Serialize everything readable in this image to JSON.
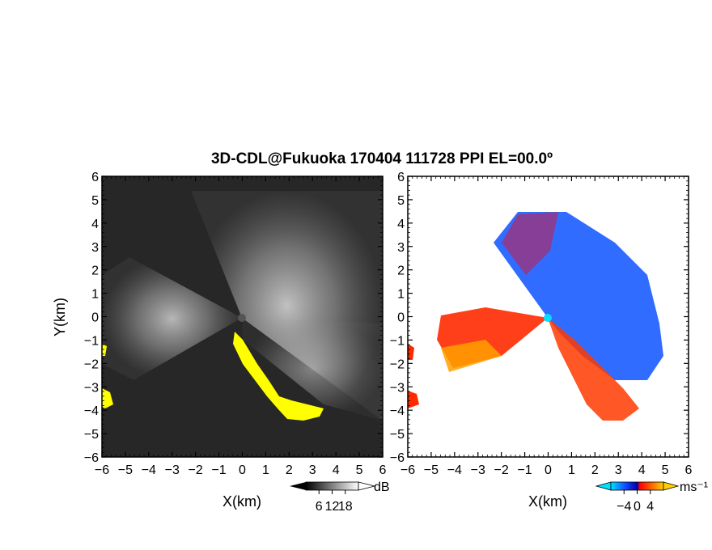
{
  "chart_data": [
    {
      "type": "heatmap",
      "panel": "reflectivity",
      "title": "3D-CDL@Fukuoka 170404 111728 PPI EL=00.0º",
      "xlabel": "X(km)",
      "ylabel": "Y(km)",
      "xlim": [
        -6,
        6
      ],
      "ylim": [
        -6,
        6
      ],
      "xticks": [
        "−6",
        "−5",
        "−4",
        "−3",
        "−2",
        "−1",
        "0",
        "1",
        "2",
        "3",
        "4",
        "5",
        "6"
      ],
      "yticks": [
        "−6",
        "−5",
        "−4",
        "−3",
        "−2",
        "−1",
        "0",
        "1",
        "2",
        "3",
        "4",
        "5",
        "6"
      ],
      "colorbar": {
        "unit": "dB",
        "ticks": [
          "6",
          "12",
          "18"
        ],
        "colors": [
          "#000000",
          "#ffffff"
        ],
        "highlight": "#ffff00"
      }
    },
    {
      "type": "heatmap",
      "panel": "doppler-velocity",
      "xlabel": "X(km)",
      "xlim": [
        -6,
        6
      ],
      "ylim": [
        -6,
        6
      ],
      "xticks": [
        "−6",
        "−5",
        "−4",
        "−3",
        "−2",
        "−1",
        "0",
        "1",
        "2",
        "3",
        "4",
        "5",
        "6"
      ],
      "yticks": [
        "−6",
        "−5",
        "−4",
        "−3",
        "−2",
        "−1",
        "0",
        "1",
        "2",
        "3",
        "4",
        "5",
        "6"
      ],
      "colorbar": {
        "unit": "ms⁻¹",
        "ticks": [
          "−4",
          "0",
          "4"
        ],
        "colors": [
          "#00d0ff",
          "#0000ff",
          "#ff0000",
          "#ffd700"
        ]
      }
    }
  ]
}
